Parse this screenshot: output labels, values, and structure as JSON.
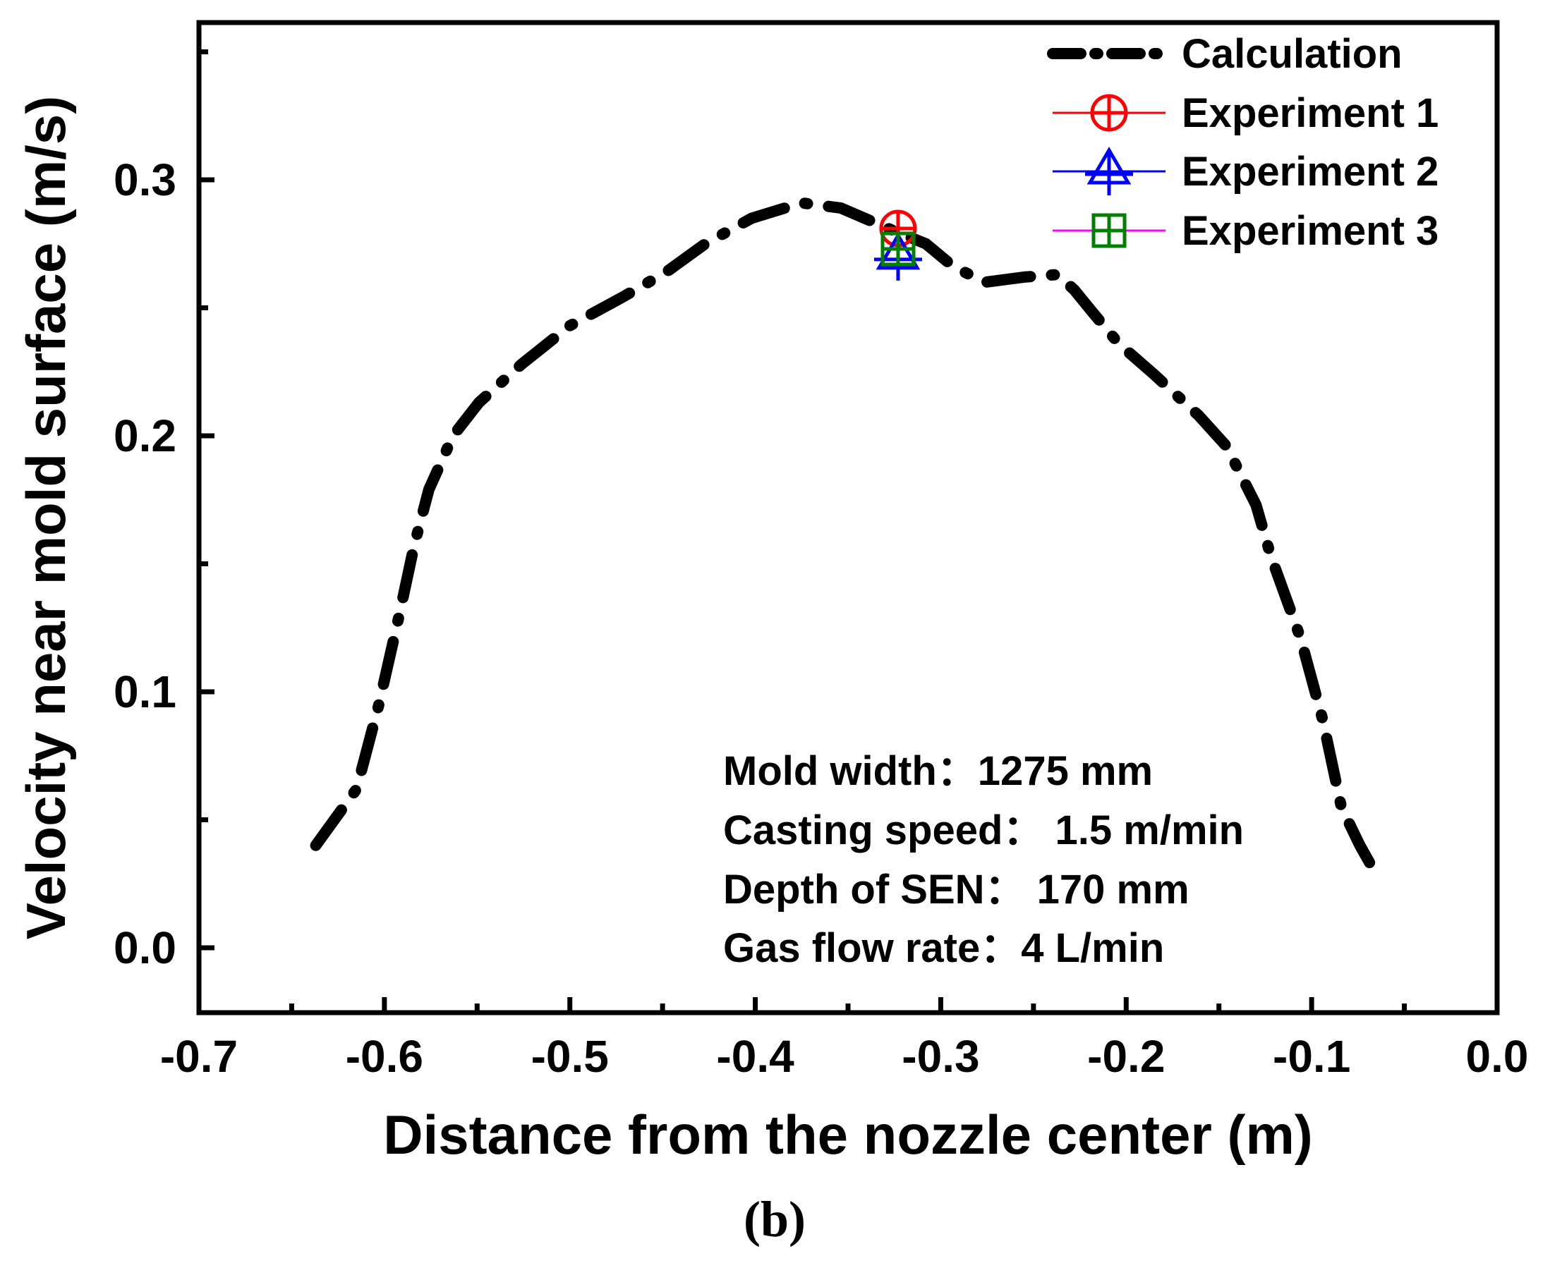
{
  "chart_data": {
    "type": "line",
    "caption": "(b)",
    "xlabel": "Distance from the nozzle center (m)",
    "ylabel": "Velocity near mold surface (m/s)",
    "xlim": [
      -0.7,
      0.0
    ],
    "ylim": [
      -0.025,
      0.36
    ],
    "x_ticks": [
      -0.7,
      -0.6,
      -0.5,
      -0.4,
      -0.3,
      -0.2,
      -0.1,
      0.0
    ],
    "x_tick_labels": [
      "-0.7",
      "-0.6",
      "-0.5",
      "-0.4",
      "-0.3",
      "-0.2",
      "-0.1",
      "0.0"
    ],
    "y_ticks": [
      0.0,
      0.1,
      0.2,
      0.3
    ],
    "y_tick_labels": [
      "0.0",
      "0.1",
      "0.2",
      "0.3"
    ],
    "x_minor_ticks": [
      -0.65,
      -0.55,
      -0.45,
      -0.35,
      -0.25,
      -0.15,
      -0.05
    ],
    "y_minor_ticks": [
      0.05,
      0.15,
      0.25,
      0.35
    ],
    "series": [
      {
        "name": "Calculation",
        "style": "dash-dot",
        "color": "#000000",
        "x": [
          -0.637,
          -0.615,
          -0.603,
          -0.592,
          -0.584,
          -0.576,
          -0.563,
          -0.549,
          -0.526,
          -0.5,
          -0.472,
          -0.448,
          -0.427,
          -0.402,
          -0.375,
          -0.354,
          -0.325,
          -0.308,
          -0.293,
          -0.276,
          -0.255,
          -0.237,
          -0.228,
          -0.219,
          -0.204,
          -0.185,
          -0.161,
          -0.146,
          -0.13,
          -0.122,
          -0.106,
          -0.094,
          -0.084,
          -0.074,
          -0.067
        ],
        "y": [
          0.04,
          0.062,
          0.095,
          0.13,
          0.157,
          0.179,
          0.2,
          0.213,
          0.228,
          0.243,
          0.254,
          0.264,
          0.275,
          0.285,
          0.291,
          0.289,
          0.28,
          0.275,
          0.266,
          0.26,
          0.262,
          0.263,
          0.257,
          0.249,
          0.236,
          0.224,
          0.208,
          0.196,
          0.173,
          0.153,
          0.121,
          0.089,
          0.055,
          0.04,
          0.031
        ]
      },
      {
        "name": "Experiment 1",
        "marker": "circle-plus",
        "color": "#ff0000",
        "x": [
          -0.323
        ],
        "y": [
          0.281
        ]
      },
      {
        "name": "Experiment 2",
        "marker": "triangle-plus",
        "color": "#0000ff",
        "x": [
          -0.323
        ],
        "y": [
          0.27
        ]
      },
      {
        "name": "Experiment 3",
        "marker": "square-plus",
        "color": "#008000",
        "legend_line_color": "#ff00ff",
        "x": [
          -0.323
        ],
        "y": [
          0.273
        ]
      }
    ],
    "legend_position": "top-right",
    "annotations": [
      "Mold width：1275 mm",
      "Casting speed： 1.5 m/min",
      "Depth of SEN： 170 mm",
      "Gas flow rate：4 L/min"
    ]
  }
}
